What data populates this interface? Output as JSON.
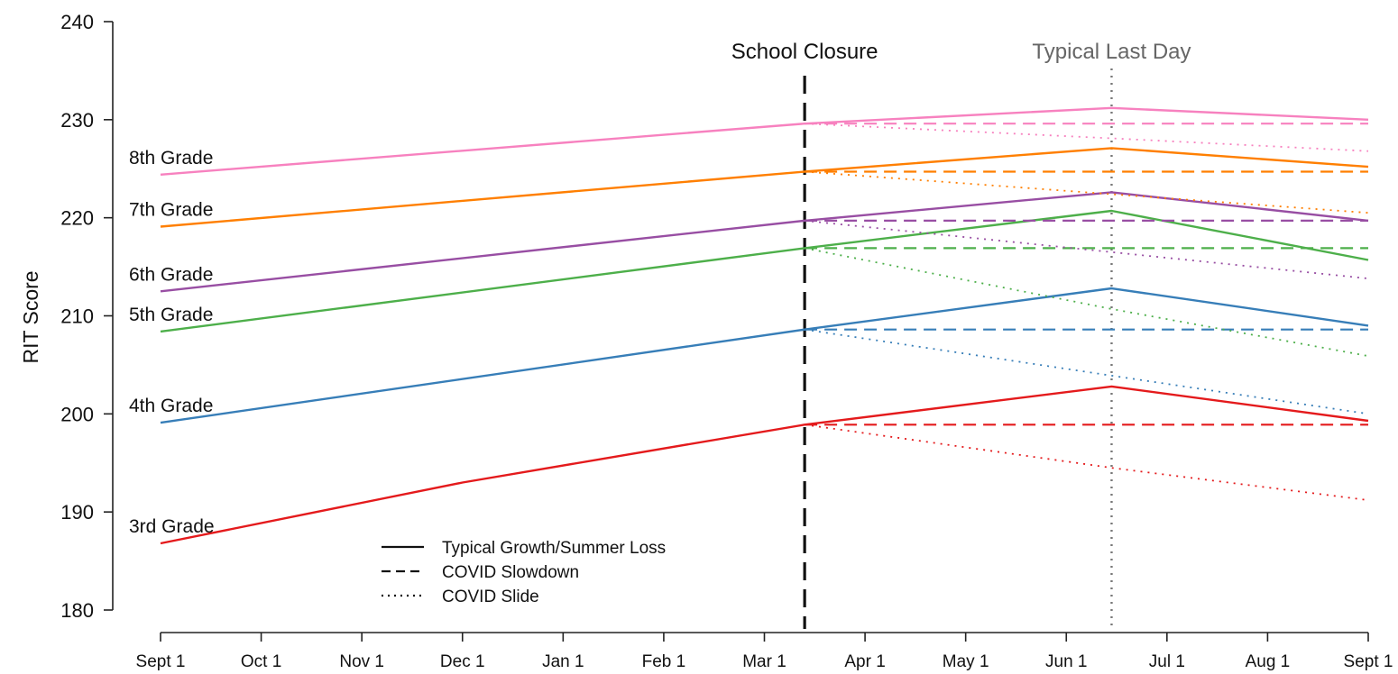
{
  "chart_data": {
    "type": "line",
    "title": "",
    "xlabel": "",
    "ylabel": "RIT Score",
    "ylim": [
      180,
      240
    ],
    "y_ticks": [
      180,
      190,
      200,
      210,
      220,
      230,
      240
    ],
    "x_ticks": [
      {
        "label": "Sept 1",
        "month": 0
      },
      {
        "label": "Oct 1",
        "month": 1
      },
      {
        "label": "Nov 1",
        "month": 2
      },
      {
        "label": "Dec 1",
        "month": 3
      },
      {
        "label": "Jan 1",
        "month": 4
      },
      {
        "label": "Feb 1",
        "month": 5
      },
      {
        "label": "Mar 1",
        "month": 6
      },
      {
        "label": "Apr 1",
        "month": 7
      },
      {
        "label": "May 1",
        "month": 8
      },
      {
        "label": "Jun 1",
        "month": 9
      },
      {
        "label": "Jul 1",
        "month": 10
      },
      {
        "label": "Aug 1",
        "month": 11
      },
      {
        "label": "Sept 1",
        "month": 12
      }
    ],
    "events": [
      {
        "label": "School Closure",
        "month": 6.4,
        "style": "dashed",
        "color": "#111111"
      },
      {
        "label": "Typical Last Day",
        "month": 9.45,
        "style": "dotted",
        "color": "#777777"
      }
    ],
    "grid": false,
    "legend_position": "bottom-left",
    "legend": [
      {
        "label": "Typical Growth/Summer Loss",
        "style": "solid"
      },
      {
        "label": "COVID Slowdown",
        "style": "dashed"
      },
      {
        "label": "COVID Slide",
        "style": "dotted"
      }
    ],
    "series": [
      {
        "name": "3rd Grade",
        "color": "#e41a1c",
        "typical": [
          [
            0,
            186.8
          ],
          [
            3,
            193.0
          ],
          [
            6.4,
            198.9
          ],
          [
            9.45,
            202.8
          ],
          [
            12,
            199.3
          ]
        ],
        "slowdown": [
          [
            6.4,
            198.9
          ],
          [
            12,
            198.9
          ]
        ],
        "slide": [
          [
            6.4,
            198.9
          ],
          [
            9.45,
            194.5
          ],
          [
            12,
            191.2
          ]
        ]
      },
      {
        "name": "4th Grade",
        "color": "#377eb8",
        "typical": [
          [
            0,
            199.1
          ],
          [
            6.4,
            208.6
          ],
          [
            9.45,
            212.8
          ],
          [
            12,
            209.0
          ]
        ],
        "slowdown": [
          [
            6.4,
            208.6
          ],
          [
            12,
            208.6
          ]
        ],
        "slide": [
          [
            6.4,
            208.6
          ],
          [
            9.45,
            203.9
          ],
          [
            12,
            200.0
          ]
        ]
      },
      {
        "name": "5th Grade",
        "color": "#4daf4a",
        "typical": [
          [
            0,
            208.4
          ],
          [
            6.4,
            216.9
          ],
          [
            9.45,
            220.7
          ],
          [
            12,
            215.7
          ]
        ],
        "slowdown": [
          [
            6.4,
            216.9
          ],
          [
            12,
            216.9
          ]
        ],
        "slide": [
          [
            6.4,
            216.9
          ],
          [
            9.45,
            210.7
          ],
          [
            12,
            205.9
          ]
        ]
      },
      {
        "name": "6th Grade",
        "color": "#984ea3",
        "typical": [
          [
            0,
            212.5
          ],
          [
            6.4,
            219.7
          ],
          [
            9.45,
            222.6
          ],
          [
            12,
            219.7
          ]
        ],
        "slowdown": [
          [
            6.4,
            219.7
          ],
          [
            12,
            219.7
          ]
        ],
        "slide": [
          [
            6.4,
            219.7
          ],
          [
            9.45,
            216.5
          ],
          [
            12,
            213.8
          ]
        ]
      },
      {
        "name": "7th Grade",
        "color": "#ff7f00",
        "typical": [
          [
            0,
            219.1
          ],
          [
            6.4,
            224.7
          ],
          [
            9.45,
            227.1
          ],
          [
            12,
            225.2
          ]
        ],
        "slowdown": [
          [
            6.4,
            224.7
          ],
          [
            12,
            224.7
          ]
        ],
        "slide": [
          [
            6.4,
            224.7
          ],
          [
            9.45,
            222.4
          ],
          [
            12,
            220.5
          ]
        ]
      },
      {
        "name": "8th Grade",
        "color": "#f781bf",
        "typical": [
          [
            0,
            224.4
          ],
          [
            6.4,
            229.6
          ],
          [
            9.45,
            231.2
          ],
          [
            12,
            230.0
          ]
        ],
        "slowdown": [
          [
            6.4,
            229.6
          ],
          [
            12,
            229.6
          ]
        ],
        "slide": [
          [
            6.4,
            229.6
          ],
          [
            9.45,
            228.1
          ],
          [
            12,
            226.8
          ]
        ]
      }
    ]
  }
}
